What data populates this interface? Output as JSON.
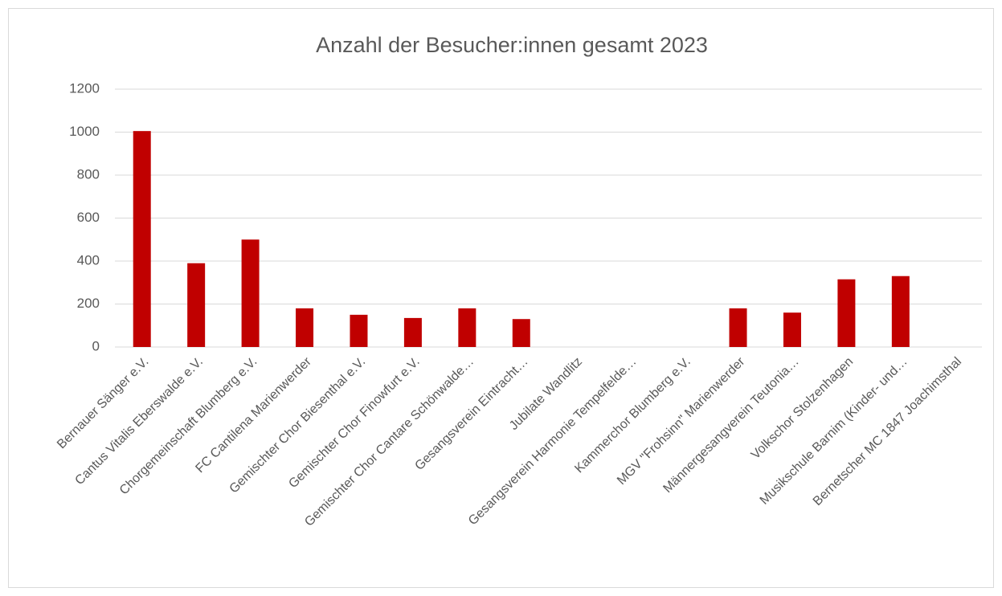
{
  "chart_data": {
    "type": "bar",
    "title": "Anzahl der Besucher:innen gesamt 2023",
    "categories": [
      "Bernauer Sänger e.V.",
      "Cantus Vitalis Eberswalde e.V.",
      "Chorgemeinschaft Blumberg e.V.",
      "FC Cantilena Marienwerder",
      "Gemischter Chor Biesenthal e.V.",
      "Gemischter Chor Finowfurt e.V.",
      "Gemischter Chor Cantare Schönwalde…",
      "Gesangsverein Eintracht…",
      "Jubilate Wandlitz",
      "Gesangsverein Harmonie Tempelfelde…",
      "Kammerchor Blumberg e.V.",
      "MGV \"Frohsinn\" Marienwerder",
      "Männergesangverein Teutonia…",
      "Volkschor Stolzenhagen",
      "Musikschule Barnim (Kinder- und…",
      "Bernetscher MC 1847 Joachimsthal"
    ],
    "values": [
      1005,
      390,
      500,
      180,
      150,
      135,
      180,
      130,
      null,
      null,
      null,
      180,
      160,
      315,
      330,
      null
    ],
    "color": "#c00000",
    "ylim": [
      0,
      1200
    ],
    "yticks": [
      0,
      200,
      400,
      600,
      800,
      1000,
      1200
    ],
    "grid": true
  }
}
